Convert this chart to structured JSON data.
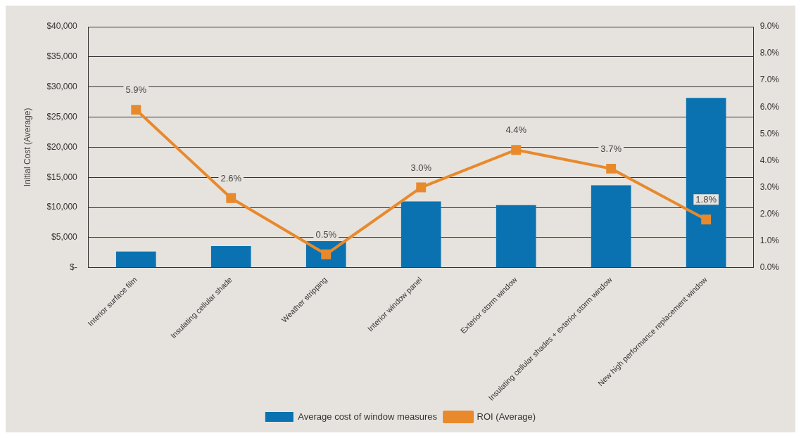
{
  "chart_data": {
    "type": "bar",
    "ylabel": "Initial Cost (Average)",
    "categories": [
      "Interior surface film",
      "Insulating cellular shade",
      "Weather stripping",
      "Interior window panel",
      "Exterior storm window",
      "Insulating cellular shades + exterior storm window",
      "New high performance replacement window"
    ],
    "series": [
      {
        "name": "Average cost of window measures",
        "color": "#0a72b0",
        "values": [
          2700,
          3600,
          4400,
          11000,
          10400,
          13700,
          28200
        ]
      },
      {
        "name": "ROI (Average)",
        "type": "line",
        "axis": "y2",
        "color": "#e8892c",
        "marker": "square",
        "values": [
          5.9,
          2.6,
          0.5,
          3.0,
          4.4,
          3.7,
          1.8
        ],
        "value_labels": [
          "5.9%",
          "2.6%",
          "0.5%",
          "3.0%",
          "4.4%",
          "3.7%",
          "1.8%"
        ]
      }
    ],
    "ylim": [
      0,
      40000
    ],
    "yticks": [
      {
        "value": 0,
        "label": "$-"
      },
      {
        "value": 5000,
        "label": "$5,000"
      },
      {
        "value": 10000,
        "label": "$10,000"
      },
      {
        "value": 15000,
        "label": "$15,000"
      },
      {
        "value": 20000,
        "label": "$20,000"
      },
      {
        "value": 25000,
        "label": "$25,000"
      },
      {
        "value": 30000,
        "label": "$30,000"
      },
      {
        "value": 35000,
        "label": "$35,000"
      },
      {
        "value": 40000,
        "label": "$40,000"
      }
    ],
    "y2lim": [
      0,
      9
    ],
    "y2ticks": [
      {
        "value": 0,
        "label": "0.0%"
      },
      {
        "value": 1,
        "label": "1.0%"
      },
      {
        "value": 2,
        "label": "2.0%"
      },
      {
        "value": 3,
        "label": "3.0%"
      },
      {
        "value": 4,
        "label": "4.0%"
      },
      {
        "value": 5,
        "label": "5.0%"
      },
      {
        "value": 6,
        "label": "6.0%"
      },
      {
        "value": 7,
        "label": "7.0%"
      },
      {
        "value": 8,
        "label": "8.0%"
      },
      {
        "value": 9,
        "label": "9.0%"
      }
    ],
    "grid": "y",
    "legend": "bottom"
  }
}
